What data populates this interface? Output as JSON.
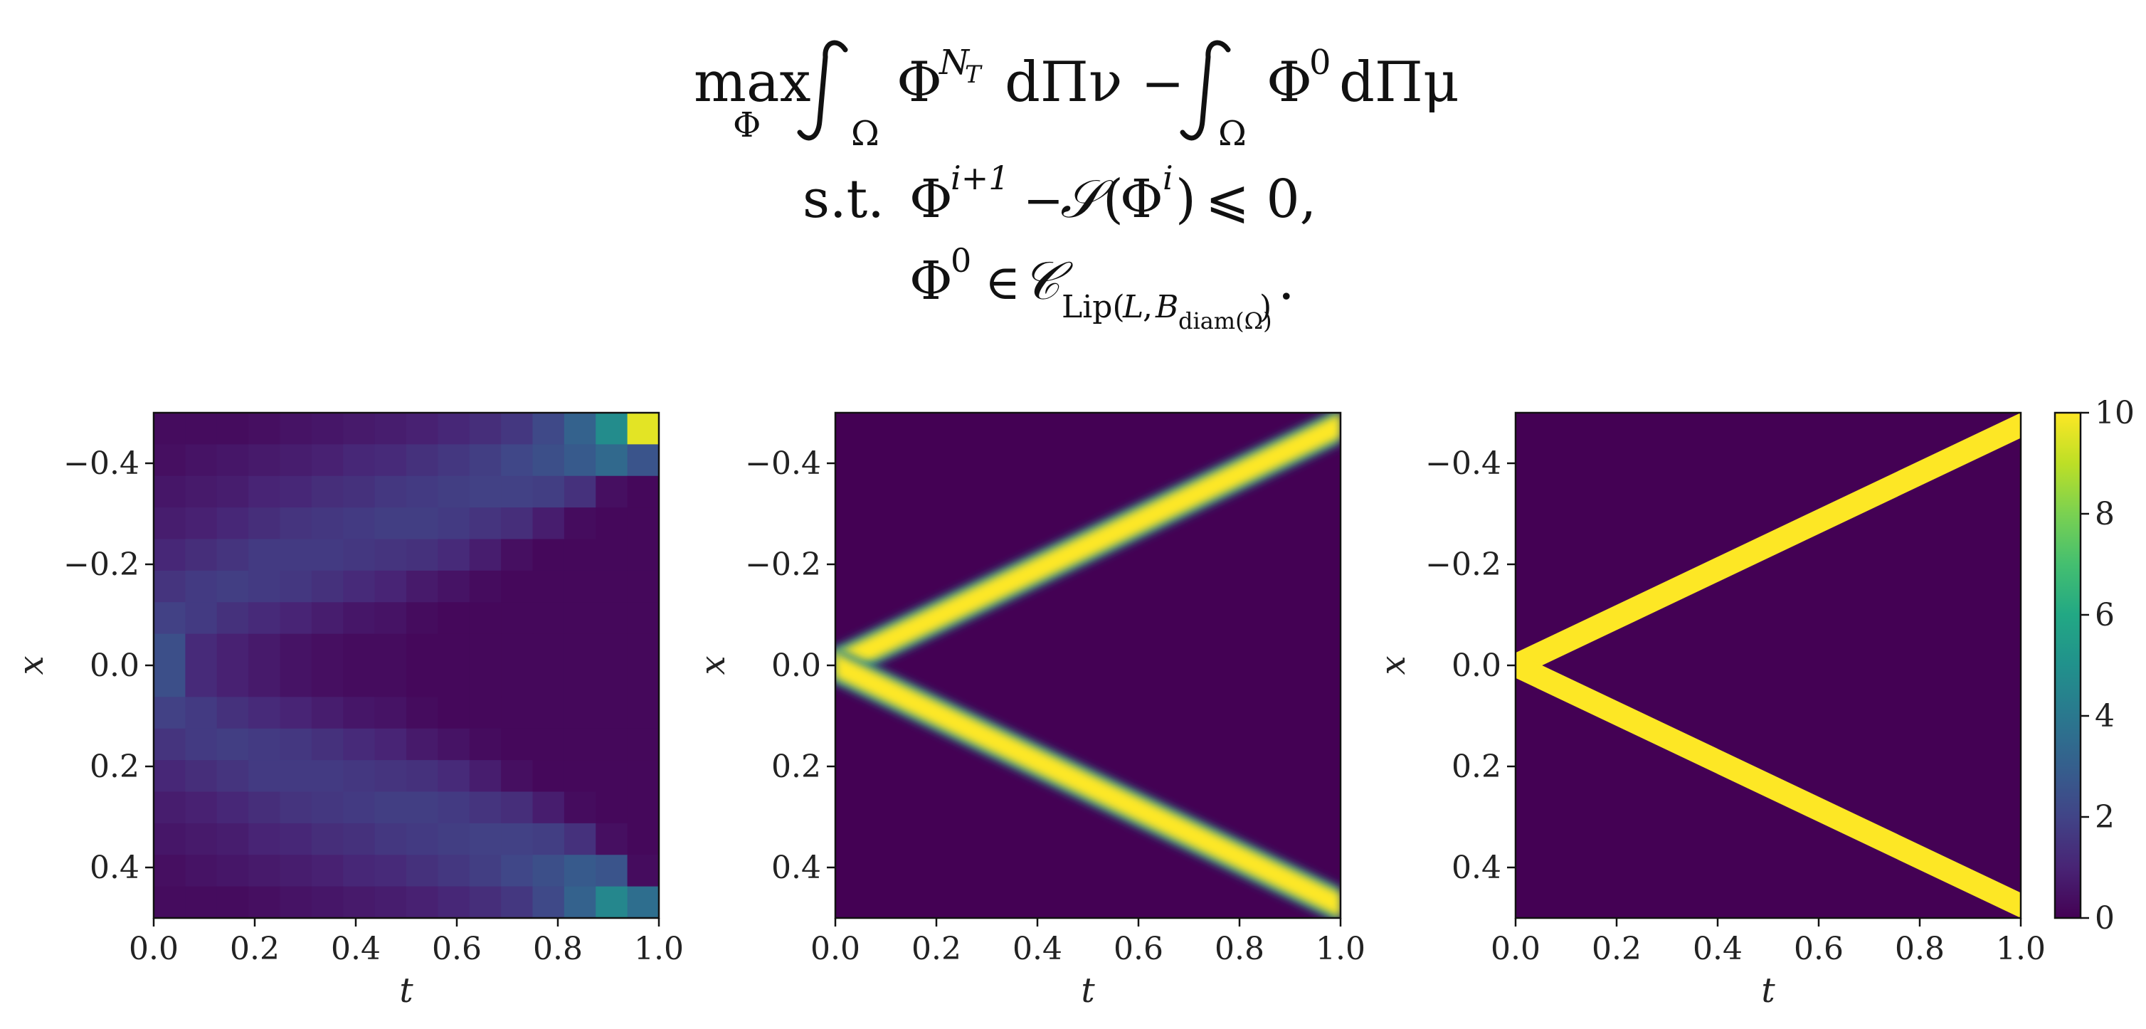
{
  "formula": {
    "line1": {
      "max": "max",
      "max_sub": "Φ",
      "int1_sub": "Ω",
      "phi1": "Φ",
      "phi1_sup": "N",
      "phi1_sup_sub": "T",
      "dPi1": "dΠν",
      "minus": "−",
      "int2_sub": "Ω",
      "phi2": "Φ",
      "phi2_sup": "0",
      "dPi2": "dΠμ"
    },
    "line2": {
      "st": "s.t.",
      "phi_a": "Φ",
      "phi_a_sup": "i+1",
      "minus": "−",
      "S": "𝒮",
      "open": "(",
      "phi_b": "Φ",
      "phi_b_sup": "i",
      "close": ")",
      "rest": "⩽ 0,"
    },
    "line3": {
      "phi": "Φ",
      "phi_sup": "0",
      "in": "∈",
      "C": "𝒞",
      "sub_lip": "Lip(",
      "sub_L": "L",
      "sub_comma": ",",
      "sub_B": "B",
      "sub_diam": "diam(Ω)",
      "sub_close": ")",
      "end": "."
    }
  },
  "chart_data": [
    {
      "type": "heatmap",
      "title": "",
      "xlabel": "t",
      "ylabel": "x",
      "xlim": [
        0.0,
        1.0
      ],
      "ylim": [
        0.5,
        -0.5
      ],
      "xticks": [
        "0.0",
        "0.2",
        "0.4",
        "0.6",
        "0.8",
        "1.0"
      ],
      "yticks": [
        "−0.4",
        "−0.2",
        "0.0",
        "0.2",
        "0.4"
      ],
      "xtick_values": [
        0.0,
        0.2,
        0.4,
        0.6,
        0.8,
        1.0
      ],
      "ytick_values": [
        -0.4,
        -0.2,
        0.0,
        0.2,
        0.4
      ],
      "colormap": "viridis",
      "vmin": 0,
      "vmax": 10,
      "grid": false,
      "nx": 16,
      "ny": 16,
      "values": [
        [
          0.3,
          0.3,
          0.3,
          0.4,
          0.5,
          0.6,
          0.7,
          0.8,
          0.9,
          1.1,
          1.3,
          1.6,
          2.2,
          3.1,
          4.8,
          9.6
        ],
        [
          0.4,
          0.5,
          0.6,
          0.7,
          0.8,
          0.9,
          1.1,
          1.2,
          1.4,
          1.6,
          1.8,
          2.1,
          2.4,
          2.8,
          3.4,
          2.6
        ],
        [
          0.6,
          0.7,
          0.8,
          1.0,
          1.1,
          1.3,
          1.4,
          1.6,
          1.7,
          1.8,
          1.9,
          1.9,
          1.8,
          1.4,
          0.4,
          0.2
        ],
        [
          0.8,
          0.9,
          1.1,
          1.3,
          1.5,
          1.6,
          1.7,
          1.8,
          1.8,
          1.7,
          1.5,
          1.3,
          0.8,
          0.3,
          0.2,
          0.2
        ],
        [
          1.1,
          1.3,
          1.5,
          1.7,
          1.7,
          1.7,
          1.6,
          1.5,
          1.4,
          1.2,
          0.8,
          0.4,
          0.2,
          0.2,
          0.2,
          0.2
        ],
        [
          1.5,
          1.7,
          1.8,
          1.7,
          1.6,
          1.4,
          1.2,
          1.0,
          0.7,
          0.5,
          0.3,
          0.2,
          0.2,
          0.2,
          0.2,
          0.2
        ],
        [
          1.9,
          1.7,
          1.4,
          1.2,
          1.0,
          0.8,
          0.6,
          0.5,
          0.3,
          0.2,
          0.2,
          0.2,
          0.2,
          0.2,
          0.2,
          0.2
        ],
        [
          2.4,
          1.2,
          0.9,
          0.7,
          0.5,
          0.4,
          0.3,
          0.3,
          0.2,
          0.2,
          0.2,
          0.2,
          0.2,
          0.2,
          0.2,
          0.2
        ],
        [
          2.4,
          1.2,
          0.9,
          0.7,
          0.5,
          0.4,
          0.3,
          0.3,
          0.2,
          0.2,
          0.2,
          0.2,
          0.2,
          0.2,
          0.2,
          0.2
        ],
        [
          1.9,
          1.7,
          1.4,
          1.2,
          1.0,
          0.8,
          0.6,
          0.5,
          0.3,
          0.2,
          0.2,
          0.2,
          0.2,
          0.2,
          0.2,
          0.2
        ],
        [
          1.5,
          1.7,
          1.8,
          1.7,
          1.6,
          1.4,
          1.2,
          1.0,
          0.7,
          0.5,
          0.3,
          0.2,
          0.2,
          0.2,
          0.2,
          0.2
        ],
        [
          1.1,
          1.3,
          1.5,
          1.7,
          1.7,
          1.7,
          1.6,
          1.5,
          1.4,
          1.2,
          0.8,
          0.4,
          0.2,
          0.2,
          0.2,
          0.2
        ],
        [
          0.8,
          0.9,
          1.1,
          1.3,
          1.5,
          1.6,
          1.7,
          1.8,
          1.8,
          1.7,
          1.5,
          1.3,
          0.8,
          0.3,
          0.2,
          0.2
        ],
        [
          0.6,
          0.7,
          0.8,
          1.0,
          1.1,
          1.3,
          1.4,
          1.6,
          1.7,
          1.8,
          1.9,
          1.9,
          1.8,
          1.4,
          0.4,
          0.2
        ],
        [
          0.4,
          0.5,
          0.6,
          0.7,
          0.8,
          0.9,
          1.1,
          1.2,
          1.4,
          1.6,
          1.8,
          2.1,
          2.4,
          2.8,
          2.6,
          0.3
        ],
        [
          0.3,
          0.3,
          0.3,
          0.4,
          0.5,
          0.6,
          0.7,
          0.8,
          0.9,
          1.1,
          1.3,
          1.6,
          2.2,
          3.1,
          4.6,
          3.6
        ]
      ]
    },
    {
      "type": "heatmap",
      "title": "",
      "xlabel": "t",
      "ylabel": "x",
      "xlim": [
        0.0,
        1.0
      ],
      "ylim": [
        0.5,
        -0.5
      ],
      "xticks": [
        "0.0",
        "0.2",
        "0.4",
        "0.6",
        "0.8",
        "1.0"
      ],
      "yticks": [
        "−0.4",
        "−0.2",
        "0.0",
        "0.2",
        "0.4"
      ],
      "xtick_values": [
        0.0,
        0.2,
        0.4,
        0.6,
        0.8,
        1.0
      ],
      "ytick_values": [
        -0.4,
        -0.2,
        0.0,
        0.2,
        0.4
      ],
      "colormap": "viridis",
      "vmin": 0,
      "vmax": 10,
      "grid": false,
      "pattern": "two smooth bands",
      "bands": [
        {
          "x_at_t0": 0.0,
          "x_at_t1": -0.475,
          "halfwidth": 0.025,
          "value": 10,
          "edge_blur": 0.012
        },
        {
          "x_at_t0": 0.0,
          "x_at_t1": 0.475,
          "halfwidth": 0.025,
          "value": 10,
          "edge_blur": 0.012
        }
      ]
    },
    {
      "type": "heatmap",
      "title": "",
      "xlabel": "t",
      "ylabel": "x",
      "xlim": [
        0.0,
        1.0
      ],
      "ylim": [
        0.5,
        -0.5
      ],
      "xticks": [
        "0.0",
        "0.2",
        "0.4",
        "0.6",
        "0.8",
        "1.0"
      ],
      "yticks": [
        "−0.4",
        "−0.2",
        "0.0",
        "0.2",
        "0.4"
      ],
      "xtick_values": [
        0.0,
        0.2,
        0.4,
        0.6,
        0.8,
        1.0
      ],
      "ytick_values": [
        -0.4,
        -0.2,
        0.0,
        0.2,
        0.4
      ],
      "colormap": "viridis",
      "vmin": 0,
      "vmax": 10,
      "grid": false,
      "pattern": "two sharp bands",
      "bands": [
        {
          "x_at_t0": 0.0,
          "x_at_t1": -0.475,
          "halfwidth": 0.025,
          "value": 10,
          "edge_blur": 0
        },
        {
          "x_at_t0": 0.0,
          "x_at_t1": 0.475,
          "halfwidth": 0.025,
          "value": 10,
          "edge_blur": 0
        }
      ]
    }
  ],
  "colorbar": {
    "ticks": [
      "0",
      "2",
      "4",
      "6",
      "8",
      "10"
    ],
    "tick_values": [
      0,
      2,
      4,
      6,
      8,
      10
    ],
    "vmin": 0,
    "vmax": 10,
    "colormap": "viridis"
  },
  "colors": {
    "viridis_low": "#440154",
    "viridis_high": "#fde725",
    "text": "#222222"
  }
}
